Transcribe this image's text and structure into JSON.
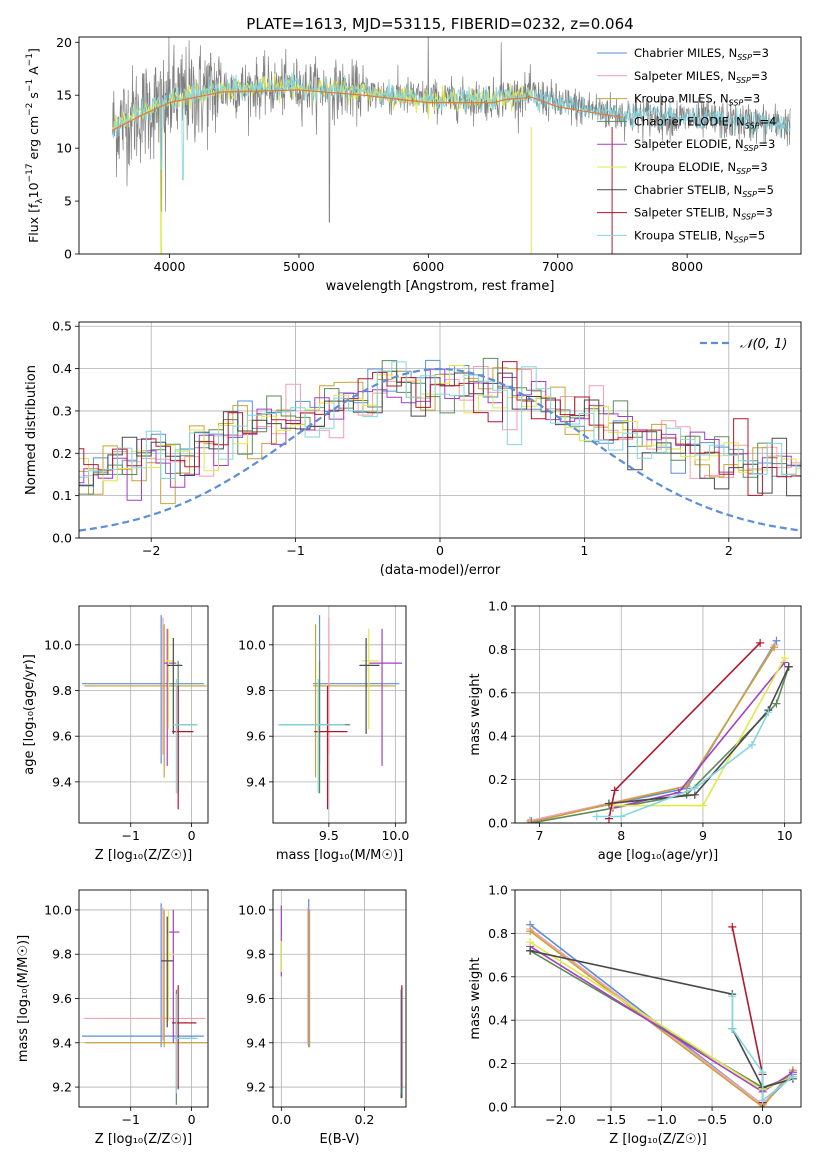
{
  "figure_title": "PLATE=1613, MJD=53115, FIBERID=0232, z=0.064",
  "colors": {
    "Chabrier MILES": "#5b8fd6",
    "Salpeter MILES": "#f29fb0",
    "Kroupa MILES": "#c9a23a",
    "Chabrier ELODIE": "#5e8a5a",
    "Salpeter ELODIE": "#a43fc6",
    "Kroupa ELODIE": "#dfe84c",
    "Chabrier STELIB": "#4a4a4a",
    "Salpeter STELIB": "#b2182b",
    "Kroupa STELIB": "#85d6df",
    "data": "#808080",
    "orange": "#e07b39",
    "gauss": "#5b8fd6"
  },
  "chart_data": [
    {
      "id": "spectrum",
      "type": "line",
      "title": "PLATE=1613, MJD=53115, FIBERID=0232, z=0.064",
      "xlabel": "wavelength [Angstrom, rest frame]",
      "ylabel_main": "Flux [f",
      "ylabel_sub": "λ",
      "ylabel_rest": "10",
      "ylabel_exp": "−17",
      "ylabel_units": " erg cm",
      "ylabel_exp2": "−2",
      "ylabel_units2": " s",
      "ylabel_exp3": "−1",
      "ylabel_units3": " A",
      "ylabel_exp4": "−1",
      "ylabel_end": "]",
      "xlim": [
        3300,
        8880
      ],
      "ylim": [
        0,
        20.5
      ],
      "xticks": [
        4000,
        5000,
        6000,
        7000,
        8000
      ],
      "yticks": [
        0,
        5,
        10,
        15,
        20
      ],
      "continuum": [
        [
          3560,
          12.0
        ],
        [
          3800,
          13.5
        ],
        [
          4000,
          14.6
        ],
        [
          4400,
          15.6
        ],
        [
          5000,
          15.8
        ],
        [
          5500,
          15.3
        ],
        [
          6000,
          14.6
        ],
        [
          6500,
          14.6
        ],
        [
          6600,
          14.9
        ],
        [
          6800,
          15.1
        ],
        [
          7000,
          14.2
        ],
        [
          7500,
          13.2
        ],
        [
          8000,
          12.8
        ],
        [
          8500,
          12.4
        ],
        [
          8800,
          12.2
        ]
      ],
      "legend": [
        {
          "label": "Chabrier MILES",
          "sub": "SSP",
          "n": "=3"
        },
        {
          "label": "Salpeter MILES",
          "sub": "SSP",
          "n": "=3"
        },
        {
          "label": "Kroupa MILES",
          "sub": "SSP",
          "n": "=3"
        },
        {
          "label": "Chabrier ELODIE",
          "sub": "SSP",
          "n": "=4"
        },
        {
          "label": "Salpeter ELODIE",
          "sub": "SSP",
          "n": "=3"
        },
        {
          "label": "Kroupa ELODIE",
          "sub": "SSP",
          "n": "=3"
        },
        {
          "label": "Chabrier STELIB",
          "sub": "SSP",
          "n": "=5"
        },
        {
          "label": "Salpeter STELIB",
          "sub": "SSP",
          "n": "=3"
        },
        {
          "label": "Kroupa STELIB",
          "sub": "SSP",
          "n": "=5"
        }
      ],
      "legend_prefix": "N"
    },
    {
      "id": "residuals",
      "type": "line",
      "xlabel": "(data-model)/error",
      "ylabel": "Normed distribution",
      "xlim": [
        -2.5,
        2.5
      ],
      "ylim": [
        0,
        0.51
      ],
      "xticks": [
        -2,
        -1,
        0,
        1,
        2
      ],
      "xtick_labels": [
        "−2",
        "−1",
        "0",
        "1",
        "2"
      ],
      "yticks": [
        0,
        0.1,
        0.2,
        0.3,
        0.4,
        0.5
      ],
      "ytick_labels": [
        "0.0",
        "0.1",
        "0.2",
        "0.3",
        "0.4",
        "0.5"
      ],
      "grid": true,
      "gauss_label": "𝒩(0, 1)",
      "gauss_sigma": 1,
      "bin_width": 0.1
    },
    {
      "id": "age_vs_Z",
      "type": "scatter",
      "xlabel": "Z [log₁₀(Z/Z☉)]",
      "ylabel": "age  [log₁₀(age/yr)]",
      "xlim": [
        -1.85,
        0.27
      ],
      "ylim": [
        9.22,
        10.17
      ],
      "xticks": [
        -1,
        0
      ],
      "xtick_labels": [
        "−1",
        "0"
      ],
      "yticks": [
        9.4,
        9.6,
        9.8,
        10.0
      ],
      "ytick_labels": [
        "9.4",
        "9.6",
        "9.8",
        "10.0"
      ],
      "grid": true,
      "points": [
        {
          "model": "Chabrier MILES",
          "x": -0.5,
          "xerr": [
            1.3,
            0.7
          ],
          "y": 9.83,
          "yerr": [
            0.35,
            0.3
          ]
        },
        {
          "model": "Salpeter MILES",
          "x": -0.47,
          "xerr": [
            1.3,
            0.7
          ],
          "y": 9.82,
          "yerr": [
            0.3,
            0.3
          ]
        },
        {
          "model": "Kroupa MILES",
          "x": -0.45,
          "xerr": [
            1.3,
            0.7
          ],
          "y": 9.82,
          "yerr": [
            0.4,
            0.27
          ]
        },
        {
          "model": "Chabrier ELODIE",
          "x": -0.22,
          "xerr": [
            0.05,
            0.3
          ],
          "y": 9.65,
          "yerr": [
            0.3,
            0.28
          ]
        },
        {
          "model": "Salpeter ELODIE",
          "x": -0.4,
          "xerr": [
            0.05,
            0.15
          ],
          "y": 9.92,
          "yerr": [
            0.45,
            0.15
          ]
        },
        {
          "model": "Kroupa ELODIE",
          "x": -0.38,
          "xerr": [
            0.05,
            0.1
          ],
          "y": 9.93,
          "yerr": [
            0.3,
            0.14
          ]
        },
        {
          "model": "Chabrier STELIB",
          "x": -0.3,
          "xerr": [
            0.1,
            0.15
          ],
          "y": 9.91,
          "yerr": [
            0.3,
            0.12
          ]
        },
        {
          "model": "Salpeter STELIB",
          "x": -0.22,
          "xerr": [
            0.1,
            0.25
          ],
          "y": 9.62,
          "yerr": [
            0.34,
            0.2
          ]
        },
        {
          "model": "Kroupa STELIB",
          "x": -0.25,
          "xerr": [
            0.05,
            0.35
          ],
          "y": 9.65,
          "yerr": [
            0.3,
            0.2
          ]
        }
      ]
    },
    {
      "id": "age_vs_mass",
      "type": "scatter",
      "xlabel": "mass [log₁₀(M/M☉)]",
      "ylabel": "",
      "xlim": [
        9.08,
        10.08
      ],
      "ylim": [
        9.22,
        10.17
      ],
      "xticks": [
        9.5,
        10.0
      ],
      "xtick_labels": [
        "9.5",
        "10.0"
      ],
      "yticks": [
        9.4,
        9.6,
        9.8,
        10.0
      ],
      "ytick_labels": [
        "9.4",
        "9.6",
        "9.8",
        "10.0"
      ],
      "grid": true,
      "points": [
        {
          "model": "Chabrier MILES",
          "x": 9.43,
          "xerr": [
            0.05,
            0.6
          ],
          "y": 9.83,
          "yerr": [
            0.35,
            0.3
          ]
        },
        {
          "model": "Salpeter MILES",
          "x": 9.5,
          "xerr": [
            0.1,
            0.45
          ],
          "y": 9.82,
          "yerr": [
            0.3,
            0.3
          ]
        },
        {
          "model": "Kroupa MILES",
          "x": 9.4,
          "xerr": [
            0.02,
            0.6
          ],
          "y": 9.82,
          "yerr": [
            0.4,
            0.27
          ]
        },
        {
          "model": "Chabrier ELODIE",
          "x": 9.43,
          "xerr": [
            0.3,
            0.23
          ],
          "y": 9.65,
          "yerr": [
            0.3,
            0.28
          ]
        },
        {
          "model": "Salpeter ELODIE",
          "x": 9.9,
          "xerr": [
            0.1,
            0.15
          ],
          "y": 9.92,
          "yerr": [
            0.45,
            0.15
          ]
        },
        {
          "model": "Kroupa ELODIE",
          "x": 9.8,
          "xerr": [
            0.05,
            0.08
          ],
          "y": 9.93,
          "yerr": [
            0.3,
            0.14
          ]
        },
        {
          "model": "Chabrier STELIB",
          "x": 9.78,
          "xerr": [
            0.05,
            0.1
          ],
          "y": 9.91,
          "yerr": [
            0.3,
            0.12
          ]
        },
        {
          "model": "Salpeter STELIB",
          "x": 9.49,
          "xerr": [
            0.1,
            0.15
          ],
          "y": 9.62,
          "yerr": [
            0.34,
            0.2
          ]
        },
        {
          "model": "Kroupa STELIB",
          "x": 9.42,
          "xerr": [
            0.3,
            0.2
          ],
          "y": 9.65,
          "yerr": [
            0.3,
            0.2
          ]
        }
      ]
    },
    {
      "id": "weight_vs_age",
      "type": "line",
      "xlabel": "age  [log₁₀(age/yr)]",
      "ylabel": "mass weight",
      "xlim": [
        6.7,
        10.2
      ],
      "ylim": [
        0,
        1.0
      ],
      "xticks": [
        7,
        8,
        9,
        10
      ],
      "xtick_labels": [
        "7",
        "8",
        "9",
        "10"
      ],
      "yticks": [
        0,
        0.2,
        0.4,
        0.6,
        0.8,
        1.0
      ],
      "ytick_labels": [
        "0.0",
        "0.2",
        "0.4",
        "0.6",
        "0.8",
        "1.0"
      ],
      "grid": true,
      "series": [
        {
          "model": "Chabrier MILES",
          "x": [
            6.9,
            8.8,
            9.9
          ],
          "y": [
            0.01,
            0.16,
            0.84
          ]
        },
        {
          "model": "Salpeter MILES",
          "x": [
            6.88,
            8.8,
            9.88
          ],
          "y": [
            0.01,
            0.17,
            0.82
          ]
        },
        {
          "model": "Kroupa MILES",
          "x": [
            6.86,
            8.8,
            9.87
          ],
          "y": [
            0.0,
            0.17,
            0.81
          ]
        },
        {
          "model": "Chabrier ELODIE",
          "x": [
            6.9,
            8.8,
            9.9,
            10.05
          ],
          "y": [
            0.0,
            0.13,
            0.55,
            0.72
          ]
        },
        {
          "model": "Salpeter ELODIE",
          "x": [
            7.9,
            8.7,
            10.0
          ],
          "y": [
            0.07,
            0.14,
            0.74
          ]
        },
        {
          "model": "Kroupa ELODIE",
          "x": [
            7.9,
            9.0,
            10.0
          ],
          "y": [
            0.08,
            0.08,
            0.76
          ]
        },
        {
          "model": "Chabrier STELIB",
          "x": [
            7.85,
            8.9,
            9.8,
            10.05
          ],
          "y": [
            0.09,
            0.13,
            0.52,
            0.72
          ]
        },
        {
          "model": "Salpeter STELIB",
          "x": [
            7.85,
            7.92,
            9.7
          ],
          "y": [
            0.02,
            0.15,
            0.83
          ]
        },
        {
          "model": "Kroupa STELIB",
          "x": [
            7.7,
            8.0,
            8.9,
            9.6,
            9.8
          ],
          "y": [
            0.03,
            0.03,
            0.16,
            0.36,
            0.51
          ]
        }
      ]
    },
    {
      "id": "mass_vs_Z",
      "type": "scatter",
      "xlabel": "Z [log₁₀(Z/Z☉)]",
      "ylabel": "mass [log₁₀(M/M☉)]",
      "xlim": [
        -1.85,
        0.27
      ],
      "ylim": [
        9.11,
        10.09
      ],
      "xticks": [
        -1,
        0
      ],
      "xtick_labels": [
        "−1",
        "0"
      ],
      "yticks": [
        9.2,
        9.4,
        9.6,
        9.8,
        10.0
      ],
      "ytick_labels": [
        "9.2",
        "9.4",
        "9.6",
        "9.8",
        "10.0"
      ],
      "grid": true,
      "points": [
        {
          "model": "Chabrier MILES",
          "x": -0.5,
          "xerr": [
            1.3,
            0.7
          ],
          "y": 9.43,
          "yerr": [
            0.05,
            0.6
          ]
        },
        {
          "model": "Salpeter MILES",
          "x": -0.47,
          "xerr": [
            1.3,
            0.7
          ],
          "y": 9.51,
          "yerr": [
            0.1,
            0.5
          ]
        },
        {
          "model": "Kroupa MILES",
          "x": -0.45,
          "xerr": [
            1.3,
            0.7
          ],
          "y": 9.4,
          "yerr": [
            0.02,
            0.6
          ]
        },
        {
          "model": "Chabrier ELODIE",
          "x": -0.25,
          "xerr": [
            0.05,
            0.3
          ],
          "y": 9.42,
          "yerr": [
            0.3,
            0.22
          ]
        },
        {
          "model": "Salpeter ELODIE",
          "x": -0.3,
          "xerr": [
            0.1,
            0.1
          ],
          "y": 9.9,
          "yerr": [
            0.5,
            0.1
          ]
        },
        {
          "model": "Kroupa ELODIE",
          "x": -0.38,
          "xerr": [
            0.05,
            0.1
          ],
          "y": 9.8,
          "yerr": [
            0.3,
            0.2
          ]
        },
        {
          "model": "Chabrier STELIB",
          "x": -0.4,
          "xerr": [
            0.1,
            0.1
          ],
          "y": 9.77,
          "yerr": [
            0.3,
            0.2
          ]
        },
        {
          "model": "Salpeter STELIB",
          "x": -0.22,
          "xerr": [
            0.1,
            0.3
          ],
          "y": 9.49,
          "yerr": [
            0.3,
            0.17
          ]
        },
        {
          "model": "Kroupa STELIB",
          "x": -0.25,
          "xerr": [
            0.05,
            0.35
          ],
          "y": 9.42,
          "yerr": [
            0.25,
            0.2
          ]
        }
      ]
    },
    {
      "id": "mass_vs_ebv",
      "type": "scatter",
      "xlabel": "E(B-V)",
      "ylabel": "",
      "xlim": [
        -0.02,
        0.3
      ],
      "ylim": [
        9.11,
        10.09
      ],
      "xticks": [
        0.0,
        0.2
      ],
      "xtick_labels": [
        "0.0",
        "0.2"
      ],
      "yticks": [
        9.2,
        9.4,
        9.6,
        9.8,
        10.0
      ],
      "ytick_labels": [
        "9.2",
        "9.4",
        "9.6",
        "9.8",
        "10.0"
      ],
      "grid": true,
      "points": [
        {
          "model": "Chabrier MILES",
          "x": 0.066,
          "y": 9.43,
          "yerr": [
            0.05,
            0.62
          ]
        },
        {
          "model": "Salpeter MILES",
          "x": 0.064,
          "y": 9.51,
          "yerr": [
            0.12,
            0.5
          ]
        },
        {
          "model": "Kroupa MILES",
          "x": 0.068,
          "y": 9.4,
          "yerr": [
            0.02,
            0.6
          ]
        },
        {
          "model": "Chabrier ELODIE",
          "x": 0.288,
          "y": 9.42,
          "yerr": [
            0.27,
            0.22
          ]
        },
        {
          "model": "Salpeter ELODIE",
          "x": 0.0,
          "y": 9.9,
          "yerr": [
            0.2,
            0.12
          ]
        },
        {
          "model": "Kroupa ELODIE",
          "x": 0.0,
          "y": 9.8,
          "yerr": [
            0.08,
            0.06
          ]
        },
        {
          "model": "Chabrier STELIB",
          "x": 0.29,
          "y": 9.45,
          "yerr": [
            0.3,
            0.2
          ]
        },
        {
          "model": "Salpeter STELIB",
          "x": 0.29,
          "y": 9.49,
          "yerr": [
            0.3,
            0.17
          ]
        },
        {
          "model": "Kroupa STELIB",
          "x": 0.287,
          "y": 9.42,
          "yerr": [
            0.25,
            0.22
          ]
        }
      ]
    },
    {
      "id": "weight_vs_Z",
      "type": "line",
      "xlabel": "Z [log₁₀(Z/Z☉)]",
      "ylabel": "mass weight",
      "xlim": [
        -2.45,
        0.38
      ],
      "ylim": [
        0,
        1.0
      ],
      "xticks": [
        -2.0,
        -1.5,
        -1.0,
        -0.5,
        0.0
      ],
      "xtick_labels": [
        "−2.0",
        "−1.5",
        "−1.0",
        "−0.5",
        "0.0"
      ],
      "yticks": [
        0,
        0.2,
        0.4,
        0.6,
        0.8,
        1.0
      ],
      "ytick_labels": [
        "0.0",
        "0.2",
        "0.4",
        "0.6",
        "0.8",
        "1.0"
      ],
      "grid": true,
      "series": [
        {
          "model": "Chabrier MILES",
          "x": [
            -2.3,
            0.0,
            0.3
          ],
          "y": [
            0.84,
            0.01,
            0.15
          ]
        },
        {
          "model": "Salpeter MILES",
          "x": [
            -2.3,
            0.0,
            0.3
          ],
          "y": [
            0.82,
            0.01,
            0.17
          ]
        },
        {
          "model": "Kroupa MILES",
          "x": [
            -2.3,
            0.0,
            0.3
          ],
          "y": [
            0.81,
            0.0,
            0.17
          ]
        },
        {
          "model": "Chabrier ELODIE",
          "x": [
            -2.3,
            0.0,
            0.3
          ],
          "y": [
            0.72,
            0.09,
            0.14
          ]
        },
        {
          "model": "Salpeter ELODIE",
          "x": [
            -2.3,
            0.0,
            0.3
          ],
          "y": [
            0.74,
            0.07,
            0.16
          ]
        },
        {
          "model": "Kroupa ELODIE",
          "x": [
            -2.3,
            0.0,
            0.3
          ],
          "y": [
            0.76,
            0.08,
            0.14
          ]
        },
        {
          "model": "Chabrier STELIB",
          "x": [
            -2.3,
            -0.3,
            -0.3,
            0.0,
            0.3
          ],
          "y": [
            0.72,
            0.52,
            0.36,
            0.09,
            0.13
          ]
        },
        {
          "model": "Salpeter STELIB",
          "x": [
            -0.3,
            0.0,
            0.0
          ],
          "y": [
            0.83,
            0.15,
            0.02
          ]
        },
        {
          "model": "Kroupa STELIB",
          "x": [
            -0.3,
            -0.3,
            0.0,
            0.0,
            0.3
          ],
          "y": [
            0.51,
            0.36,
            0.16,
            0.03,
            0.14
          ]
        }
      ]
    }
  ]
}
